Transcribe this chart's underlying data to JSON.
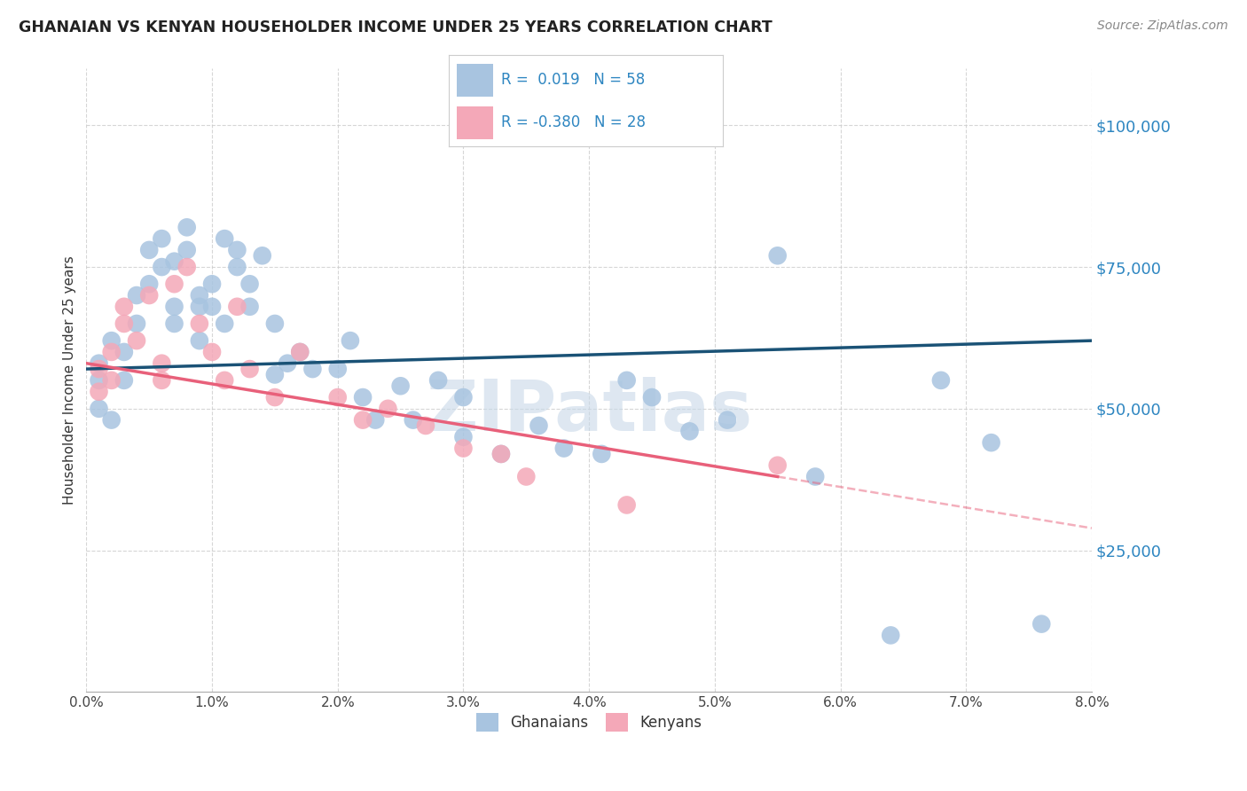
{
  "title": "GHANAIAN VS KENYAN HOUSEHOLDER INCOME UNDER 25 YEARS CORRELATION CHART",
  "source": "Source: ZipAtlas.com",
  "ylabel": "Householder Income Under 25 years",
  "xmin": 0.0,
  "xmax": 0.08,
  "ymin": 0,
  "ymax": 110000,
  "yticks": [
    25000,
    50000,
    75000,
    100000
  ],
  "ytick_labels": [
    "$25,000",
    "$50,000",
    "$75,000",
    "$100,000"
  ],
  "ghanaian_color": "#a8c4e0",
  "kenyan_color": "#f4a8b8",
  "ghanaian_line_color": "#1a5276",
  "kenyan_line_color": "#e8607a",
  "background_color": "#ffffff",
  "grid_color": "#cccccc",
  "watermark_text": "ZIPatlas",
  "watermark_color": "#c8d8e8",
  "ghanaians_x": [
    0.001,
    0.001,
    0.001,
    0.002,
    0.002,
    0.003,
    0.003,
    0.004,
    0.004,
    0.005,
    0.005,
    0.006,
    0.006,
    0.007,
    0.007,
    0.007,
    0.008,
    0.008,
    0.009,
    0.009,
    0.009,
    0.01,
    0.01,
    0.011,
    0.011,
    0.012,
    0.012,
    0.013,
    0.013,
    0.014,
    0.015,
    0.015,
    0.016,
    0.017,
    0.018,
    0.02,
    0.021,
    0.022,
    0.023,
    0.025,
    0.026,
    0.028,
    0.03,
    0.03,
    0.033,
    0.036,
    0.038,
    0.041,
    0.043,
    0.045,
    0.048,
    0.051,
    0.055,
    0.058,
    0.064,
    0.068,
    0.072,
    0.076
  ],
  "ghanaians_y": [
    58000,
    55000,
    50000,
    62000,
    48000,
    60000,
    55000,
    70000,
    65000,
    78000,
    72000,
    80000,
    75000,
    68000,
    65000,
    76000,
    82000,
    78000,
    70000,
    68000,
    62000,
    72000,
    68000,
    65000,
    80000,
    78000,
    75000,
    72000,
    68000,
    77000,
    56000,
    65000,
    58000,
    60000,
    57000,
    57000,
    62000,
    52000,
    48000,
    54000,
    48000,
    55000,
    45000,
    52000,
    42000,
    47000,
    43000,
    42000,
    55000,
    52000,
    46000,
    48000,
    77000,
    38000,
    10000,
    55000,
    44000,
    12000
  ],
  "kenyans_x": [
    0.001,
    0.001,
    0.002,
    0.002,
    0.003,
    0.003,
    0.004,
    0.005,
    0.006,
    0.006,
    0.007,
    0.008,
    0.009,
    0.01,
    0.011,
    0.012,
    0.013,
    0.015,
    0.017,
    0.02,
    0.022,
    0.024,
    0.027,
    0.03,
    0.033,
    0.035,
    0.043,
    0.055
  ],
  "kenyans_y": [
    57000,
    53000,
    60000,
    55000,
    65000,
    68000,
    62000,
    70000,
    58000,
    55000,
    72000,
    75000,
    65000,
    60000,
    55000,
    68000,
    57000,
    52000,
    60000,
    52000,
    48000,
    50000,
    47000,
    43000,
    42000,
    38000,
    33000,
    40000
  ],
  "blue_line_x0": 0.0,
  "blue_line_y0": 57000,
  "blue_line_x1": 0.08,
  "blue_line_y1": 62000,
  "pink_line_x0": 0.0,
  "pink_line_y0": 58000,
  "pink_line_x1": 0.055,
  "pink_line_y1": 38000
}
